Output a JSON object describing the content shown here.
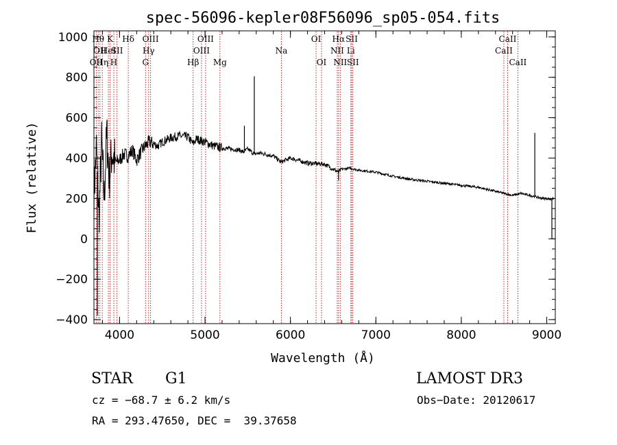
{
  "chart_data": {
    "type": "line",
    "title": "spec-56096-kepler08F56096_sp05-054.fits",
    "xlabel": "Wavelength (Å)",
    "ylabel": "Flux (relative)",
    "xlim": [
      3700,
      9100
    ],
    "ylim": [
      -420,
      1030
    ],
    "xticks": [
      4000,
      5000,
      6000,
      7000,
      8000,
      9000
    ],
    "yticks": [
      -400,
      -200,
      0,
      200,
      400,
      600,
      800,
      1000
    ],
    "x_minor_step": 200,
    "y_minor_step": 50,
    "grid": false,
    "series": [
      {
        "name": "flux",
        "x": [
          3700,
          3730,
          3760,
          3790,
          3820,
          3850,
          3880,
          3910,
          3950,
          4000,
          4050,
          4100,
          4150,
          4200,
          4250,
          4300,
          4350,
          4400,
          4450,
          4500,
          4600,
          4700,
          4800,
          4860,
          4900,
          5000,
          5100,
          5200,
          5300,
          5400,
          5450,
          5500,
          5577,
          5650,
          5800,
          5890,
          6000,
          6200,
          6400,
          6563,
          6600,
          6700,
          6800,
          7000,
          7200,
          7400,
          7600,
          7800,
          8000,
          8200,
          8400,
          8500,
          8600,
          8700,
          8800,
          8860,
          8900,
          8950,
          9000,
          9050,
          9080
        ],
        "y": [
          220,
          450,
          100,
          470,
          200,
          520,
          300,
          430,
          380,
          390,
          420,
          410,
          440,
          390,
          430,
          460,
          480,
          470,
          460,
          480,
          500,
          510,
          505,
          470,
          495,
          480,
          460,
          450,
          445,
          440,
          430,
          445,
          420,
          425,
          410,
          380,
          400,
          375,
          370,
          330,
          345,
          350,
          340,
          330,
          310,
          295,
          285,
          275,
          265,
          255,
          235,
          225,
          215,
          225,
          215,
          210,
          205,
          200,
          200,
          195,
          200
        ]
      }
    ],
    "spikes": [
      {
        "x": 5577,
        "y": 805
      },
      {
        "x": 5461,
        "y": 560
      },
      {
        "x": 8860,
        "y": 525
      },
      {
        "x": 6563,
        "y": 290
      },
      {
        "x": 9060,
        "y": 0
      },
      {
        "x": 3740,
        "y": -380
      }
    ],
    "emission_lines": [
      {
        "x": 3727,
        "labels": [
          "OII"
        ],
        "row": 3
      },
      {
        "x": 3750,
        "labels": [
          "Hθ"
        ],
        "row": 1
      },
      {
        "x": 3770,
        "labels": [
          "OII"
        ],
        "row": 2
      },
      {
        "x": 3798,
        "labels": [
          "Hη"
        ],
        "row": 3
      },
      {
        "x": 3869,
        "labels": [
          "HeI"
        ],
        "row": 2
      },
      {
        "x": 3889,
        "labels": [
          "K"
        ],
        "row": 1
      },
      {
        "x": 3933,
        "labels": [
          "H"
        ],
        "row": 3
      },
      {
        "x": 3970,
        "labels": [
          "SII"
        ],
        "row": 2
      },
      {
        "x": 4102,
        "labels": [
          "Hδ"
        ],
        "row": 1
      },
      {
        "x": 4304,
        "labels": [
          "G"
        ],
        "row": 3
      },
      {
        "x": 4340,
        "labels": [
          "Hγ"
        ],
        "row": 2
      },
      {
        "x": 4363,
        "labels": [
          "OIII"
        ],
        "row": 1
      },
      {
        "x": 4861,
        "labels": [
          "Hβ"
        ],
        "row": 3
      },
      {
        "x": 4959,
        "labels": [
          "OIII"
        ],
        "row": 2
      },
      {
        "x": 5007,
        "labels": [
          "OIII"
        ],
        "row": 1
      },
      {
        "x": 5175,
        "labels": [
          "Mg"
        ],
        "row": 3
      },
      {
        "x": 5894,
        "labels": [
          "Na"
        ],
        "row": 2
      },
      {
        "x": 6300,
        "labels": [
          "OI"
        ],
        "row": 1
      },
      {
        "x": 6364,
        "labels": [
          "OI"
        ],
        "row": 3
      },
      {
        "x": 6548,
        "labels": [
          "NII"
        ],
        "row": 2
      },
      {
        "x": 6563,
        "labels": [
          "Hα"
        ],
        "row": 1
      },
      {
        "x": 6583,
        "labels": [
          "NII"
        ],
        "row": 3
      },
      {
        "x": 6707,
        "labels": [
          "Li"
        ],
        "row": 2
      },
      {
        "x": 6717,
        "labels": [
          "SII"
        ],
        "row": 1
      },
      {
        "x": 6731,
        "labels": [
          "SII"
        ],
        "row": 3
      },
      {
        "x": 8498,
        "labels": [
          "CaII"
        ],
        "row": 2
      },
      {
        "x": 8542,
        "labels": [
          "CaII"
        ],
        "row": 1
      },
      {
        "x": 8662,
        "labels": [
          "CaII"
        ],
        "row": 3
      }
    ]
  },
  "info": {
    "object_class": "STAR",
    "subclass": "G1",
    "survey": "LAMOST DR3",
    "cz": "cz = −68.7 ± 6.2 km/s",
    "obs_date": "Obs−Date: 20120617",
    "coords": "RA = 293.47650, DEC =  39.37658"
  },
  "colors": {
    "line": "#000000",
    "marker": "#cc0000",
    "axis": "#000000"
  }
}
